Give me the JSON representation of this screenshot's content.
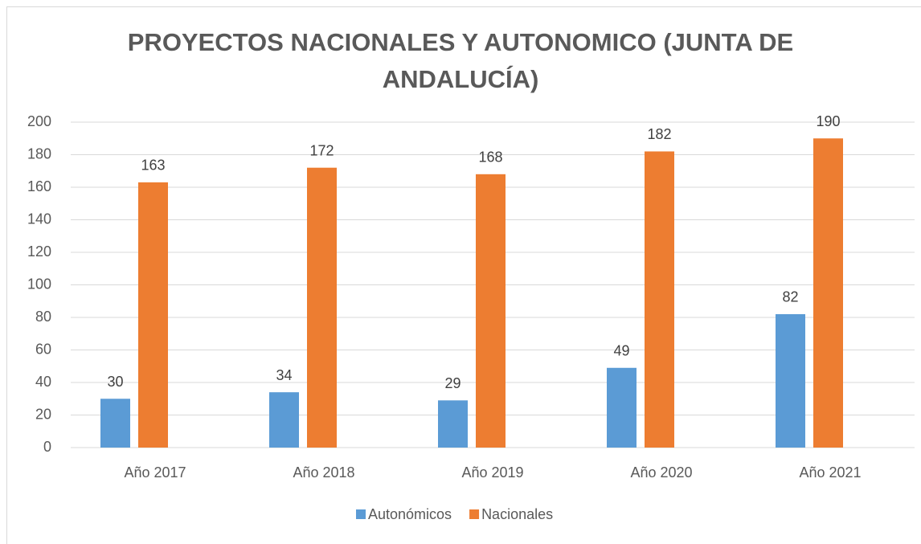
{
  "chart_data": {
    "type": "bar",
    "title": "PROYECTOS NACIONALES Y AUTONOMICO (JUNTA DE ANDALUCÍA)",
    "categories": [
      "Año 2017",
      "Año 2018",
      "Año 2019",
      "Año 2020",
      "Año 2021"
    ],
    "series": [
      {
        "name": "Autonómicos",
        "color": "#5b9bd5",
        "values": [
          30,
          34,
          29,
          49,
          82
        ]
      },
      {
        "name": "Nacionales",
        "color": "#ed7d31",
        "values": [
          163,
          172,
          168,
          182,
          190
        ]
      }
    ],
    "ylim": [
      0,
      200
    ],
    "yticks": [
      0,
      20,
      40,
      60,
      80,
      100,
      120,
      140,
      160,
      180,
      200
    ],
    "grid": true,
    "legend": "bottom"
  }
}
